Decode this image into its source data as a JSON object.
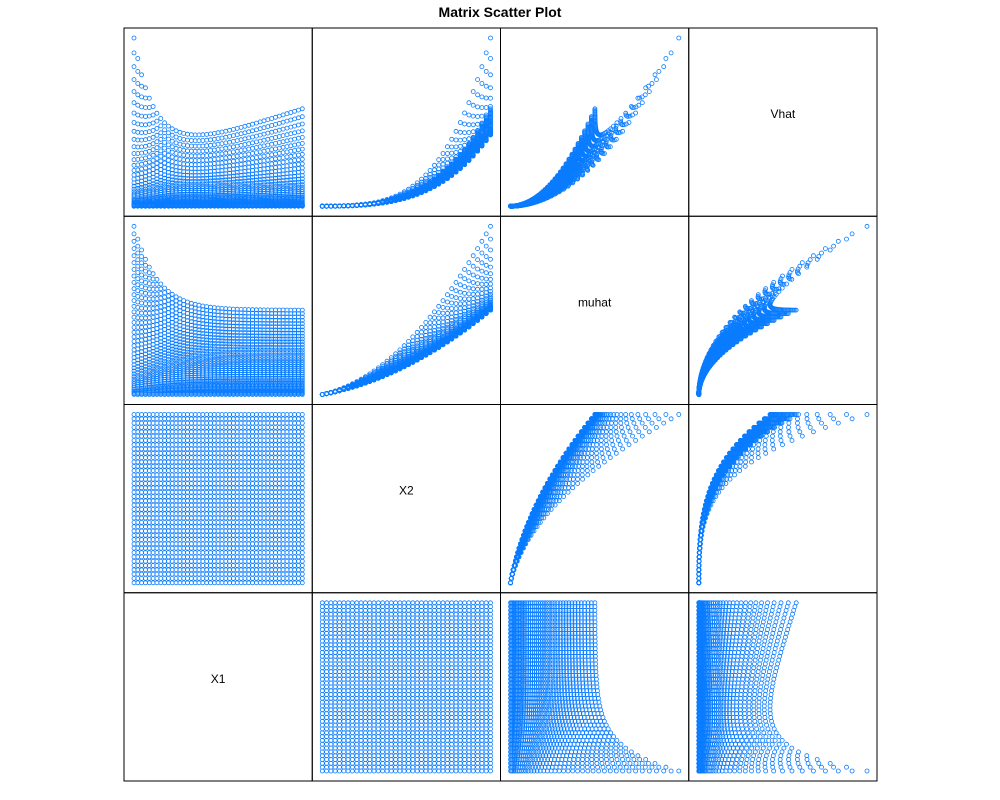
{
  "chart_data": {
    "type": "scatter",
    "title": "Matrix Scatter Plot",
    "variables": [
      "Vhat",
      "muhat",
      "X2",
      "X1"
    ],
    "marker": "open-circle",
    "marker_color": "#0a7cff",
    "grid": false,
    "legend": "none",
    "layout": "4x4 scatterplot matrix; variable names on the anti-diagonal",
    "data": {
      "X1": [
        1,
        2,
        3,
        4,
        5,
        6,
        7,
        8,
        9,
        10,
        11,
        12,
        13,
        14,
        15,
        16,
        17,
        18,
        19,
        20,
        21,
        22,
        23,
        24,
        25,
        26,
        27,
        28,
        29,
        30,
        31,
        32,
        33,
        34,
        35,
        36,
        37,
        38,
        39,
        40,
        41,
        42,
        43,
        44,
        45
      ],
      "X2": [
        1,
        2,
        3,
        4,
        5,
        6,
        7,
        8,
        9,
        10,
        11,
        12,
        13,
        14,
        15,
        16,
        17,
        18,
        19,
        20,
        21,
        22,
        23,
        24,
        25,
        26,
        27,
        28,
        29,
        30,
        31,
        32,
        33,
        34,
        35,
        36,
        37,
        38,
        39,
        40
      ],
      "muhat": "varies with X1 and X2; increasing in X2",
      "Vhat": "varies with X1 and X2; increasing in muhat"
    }
  }
}
